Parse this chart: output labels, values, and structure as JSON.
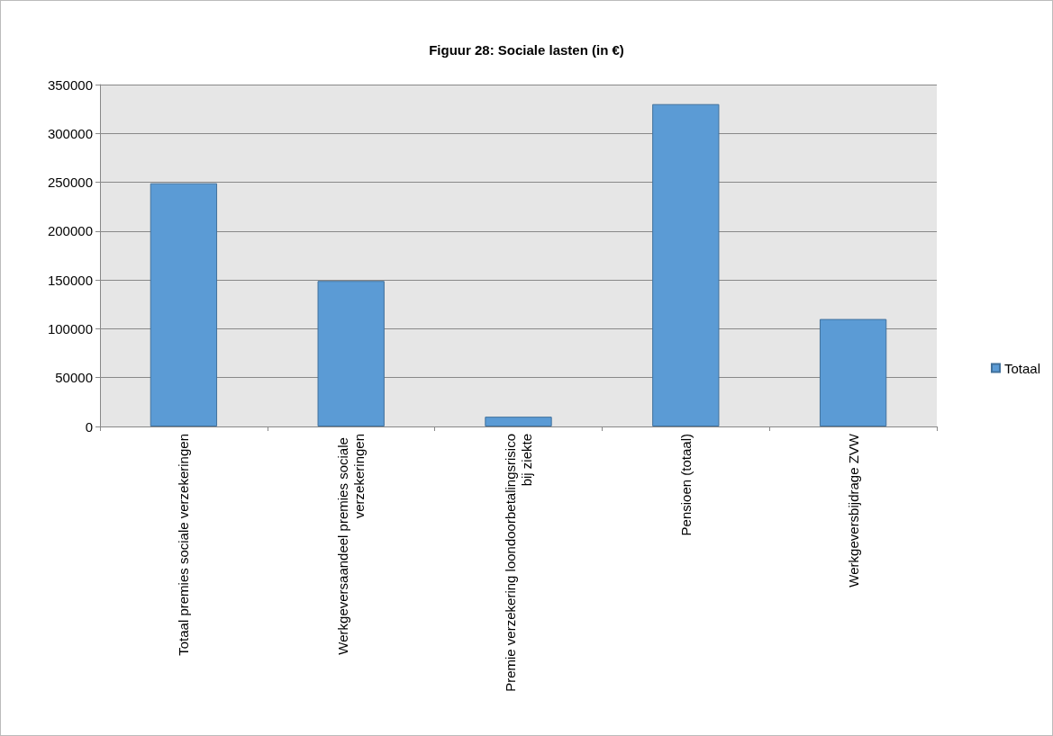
{
  "chart_data": {
    "type": "bar",
    "title": "Figuur 28: Sociale lasten (in €)",
    "categories": [
      "Totaal premies sociale verzekeringen",
      "Werkgeversaandeel premies sociale verzekeringen",
      "Premie verzekering loondoorbetalingsrisico bij ziekte",
      "Pensioen (totaal)",
      "Werkgeversbijdrage ZVW"
    ],
    "series": [
      {
        "name": "Totaal",
        "color": "#5b9bd5",
        "values": [
          249000,
          149000,
          10000,
          330000,
          110000
        ]
      }
    ],
    "ylim": [
      0,
      350000
    ],
    "yticks": [
      0,
      50000,
      100000,
      150000,
      200000,
      250000,
      300000,
      350000
    ],
    "grid": "y",
    "legend": "right"
  }
}
